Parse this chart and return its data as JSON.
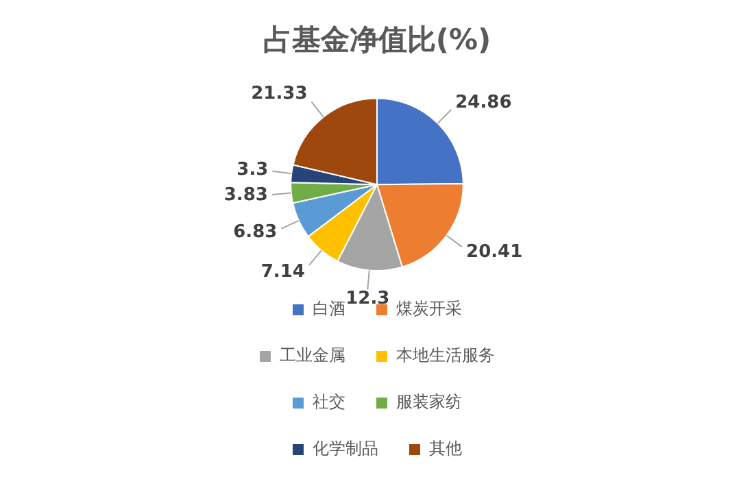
{
  "chart_data": {
    "type": "pie",
    "title": "占基金净值比(%)",
    "categories": [
      "白酒",
      "煤炭开采",
      "工业金属",
      "本地生活服务",
      "社交",
      "服装家纺",
      "化学制品",
      "其他"
    ],
    "values": [
      24.86,
      20.41,
      12.3,
      7.14,
      6.83,
      3.83,
      3.3,
      21.33
    ],
    "colors": [
      "#4472c4",
      "#ed7d31",
      "#a5a5a5",
      "#ffc000",
      "#5b9bd5",
      "#70ad47",
      "#264478",
      "#9e480e"
    ],
    "data_labels": true,
    "legend": "bottom"
  }
}
